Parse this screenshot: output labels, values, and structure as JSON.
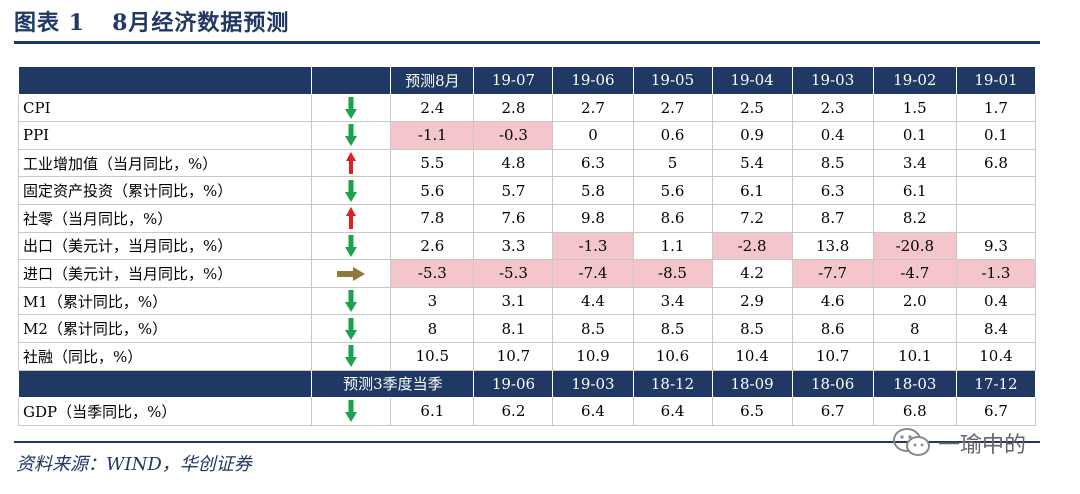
{
  "title": {
    "label": "图表 1",
    "text": "8月经济数据预测"
  },
  "header": [
    "",
    "",
    "预测8月",
    "19-07",
    "19-06",
    "19-05",
    "19-04",
    "19-03",
    "19-02",
    "19-01"
  ],
  "rows": [
    {
      "label": "CPI",
      "trend": "down",
      "values": [
        "2.4",
        "2.8",
        "2.7",
        "2.7",
        "2.5",
        "2.3",
        "1.5",
        "1.7"
      ],
      "neg": [
        false,
        false,
        false,
        false,
        false,
        false,
        false,
        false
      ]
    },
    {
      "label": "PPI",
      "trend": "down",
      "values": [
        "-1.1",
        "-0.3",
        "0",
        "0.6",
        "0.9",
        "0.4",
        "0.1",
        "0.1"
      ],
      "neg": [
        true,
        true,
        false,
        false,
        false,
        false,
        false,
        false
      ]
    },
    {
      "label": "工业增加值（当月同比，%）",
      "trend": "up",
      "values": [
        "5.5",
        "4.8",
        "6.3",
        "5",
        "5.4",
        "8.5",
        "3.4",
        "6.8"
      ],
      "neg": [
        false,
        false,
        false,
        false,
        false,
        false,
        false,
        false
      ]
    },
    {
      "label": "固定资产投资（累计同比，%）",
      "trend": "down",
      "values": [
        "5.6",
        "5.7",
        "5.8",
        "5.6",
        "6.1",
        "6.3",
        "6.1",
        ""
      ],
      "neg": [
        false,
        false,
        false,
        false,
        false,
        false,
        false,
        false
      ]
    },
    {
      "label": "社零（当月同比，%）",
      "trend": "up",
      "values": [
        "7.8",
        "7.6",
        "9.8",
        "8.6",
        "7.2",
        "8.7",
        "8.2",
        ""
      ],
      "neg": [
        false,
        false,
        false,
        false,
        false,
        false,
        false,
        false
      ]
    },
    {
      "label": "出口（美元计，当月同比，%）",
      "trend": "down",
      "values": [
        "2.6",
        "3.3",
        "-1.3",
        "1.1",
        "-2.8",
        "13.8",
        "-20.8",
        "9.3"
      ],
      "neg": [
        false,
        false,
        true,
        false,
        true,
        false,
        true,
        false
      ]
    },
    {
      "label": "进口（美元计，当月同比，%）",
      "trend": "flat",
      "values": [
        "-5.3",
        "-5.3",
        "-7.4",
        "-8.5",
        "4.2",
        "-7.7",
        "-4.7",
        "-1.3"
      ],
      "neg": [
        true,
        true,
        true,
        true,
        false,
        true,
        true,
        true
      ]
    },
    {
      "label": "M1（累计同比，%）",
      "trend": "down",
      "values": [
        "3",
        "3.1",
        "4.4",
        "3.4",
        "2.9",
        "4.6",
        "2.0",
        "0.4"
      ],
      "neg": [
        false,
        false,
        false,
        false,
        false,
        false,
        false,
        false
      ]
    },
    {
      "label": "M2（累计同比，%）",
      "trend": "down",
      "values": [
        "8",
        "8.1",
        "8.5",
        "8.5",
        "8.5",
        "8.6",
        "8",
        "8.4"
      ],
      "neg": [
        false,
        false,
        false,
        false,
        false,
        false,
        false,
        false
      ]
    },
    {
      "label": "社融（同比，%）",
      "trend": "down",
      "values": [
        "10.5",
        "10.7",
        "10.9",
        "10.6",
        "10.4",
        "10.7",
        "10.1",
        "10.4"
      ],
      "neg": [
        false,
        false,
        false,
        false,
        false,
        false,
        false,
        false
      ]
    }
  ],
  "header2": [
    "",
    "预测3季度当季",
    "19-06",
    "19-03",
    "18-12",
    "18-09",
    "18-06",
    "18-03",
    "17-12"
  ],
  "gdp_row": {
    "label": "GDP（当季同比，%）",
    "trend": "down",
    "values": [
      "6.1",
      "6.2",
      "6.4",
      "6.4",
      "6.5",
      "6.7",
      "6.8",
      "6.7"
    ]
  },
  "source": "资料来源：WIND，华创证券",
  "watermark": "一瑜中的",
  "colors": {
    "header_bg": "#1f3864",
    "negative_bg": "#f4c6cc",
    "down_arrow": "#1aa34a",
    "up_arrow": "#e02020",
    "flat_arrow": "#8b7a3a"
  }
}
